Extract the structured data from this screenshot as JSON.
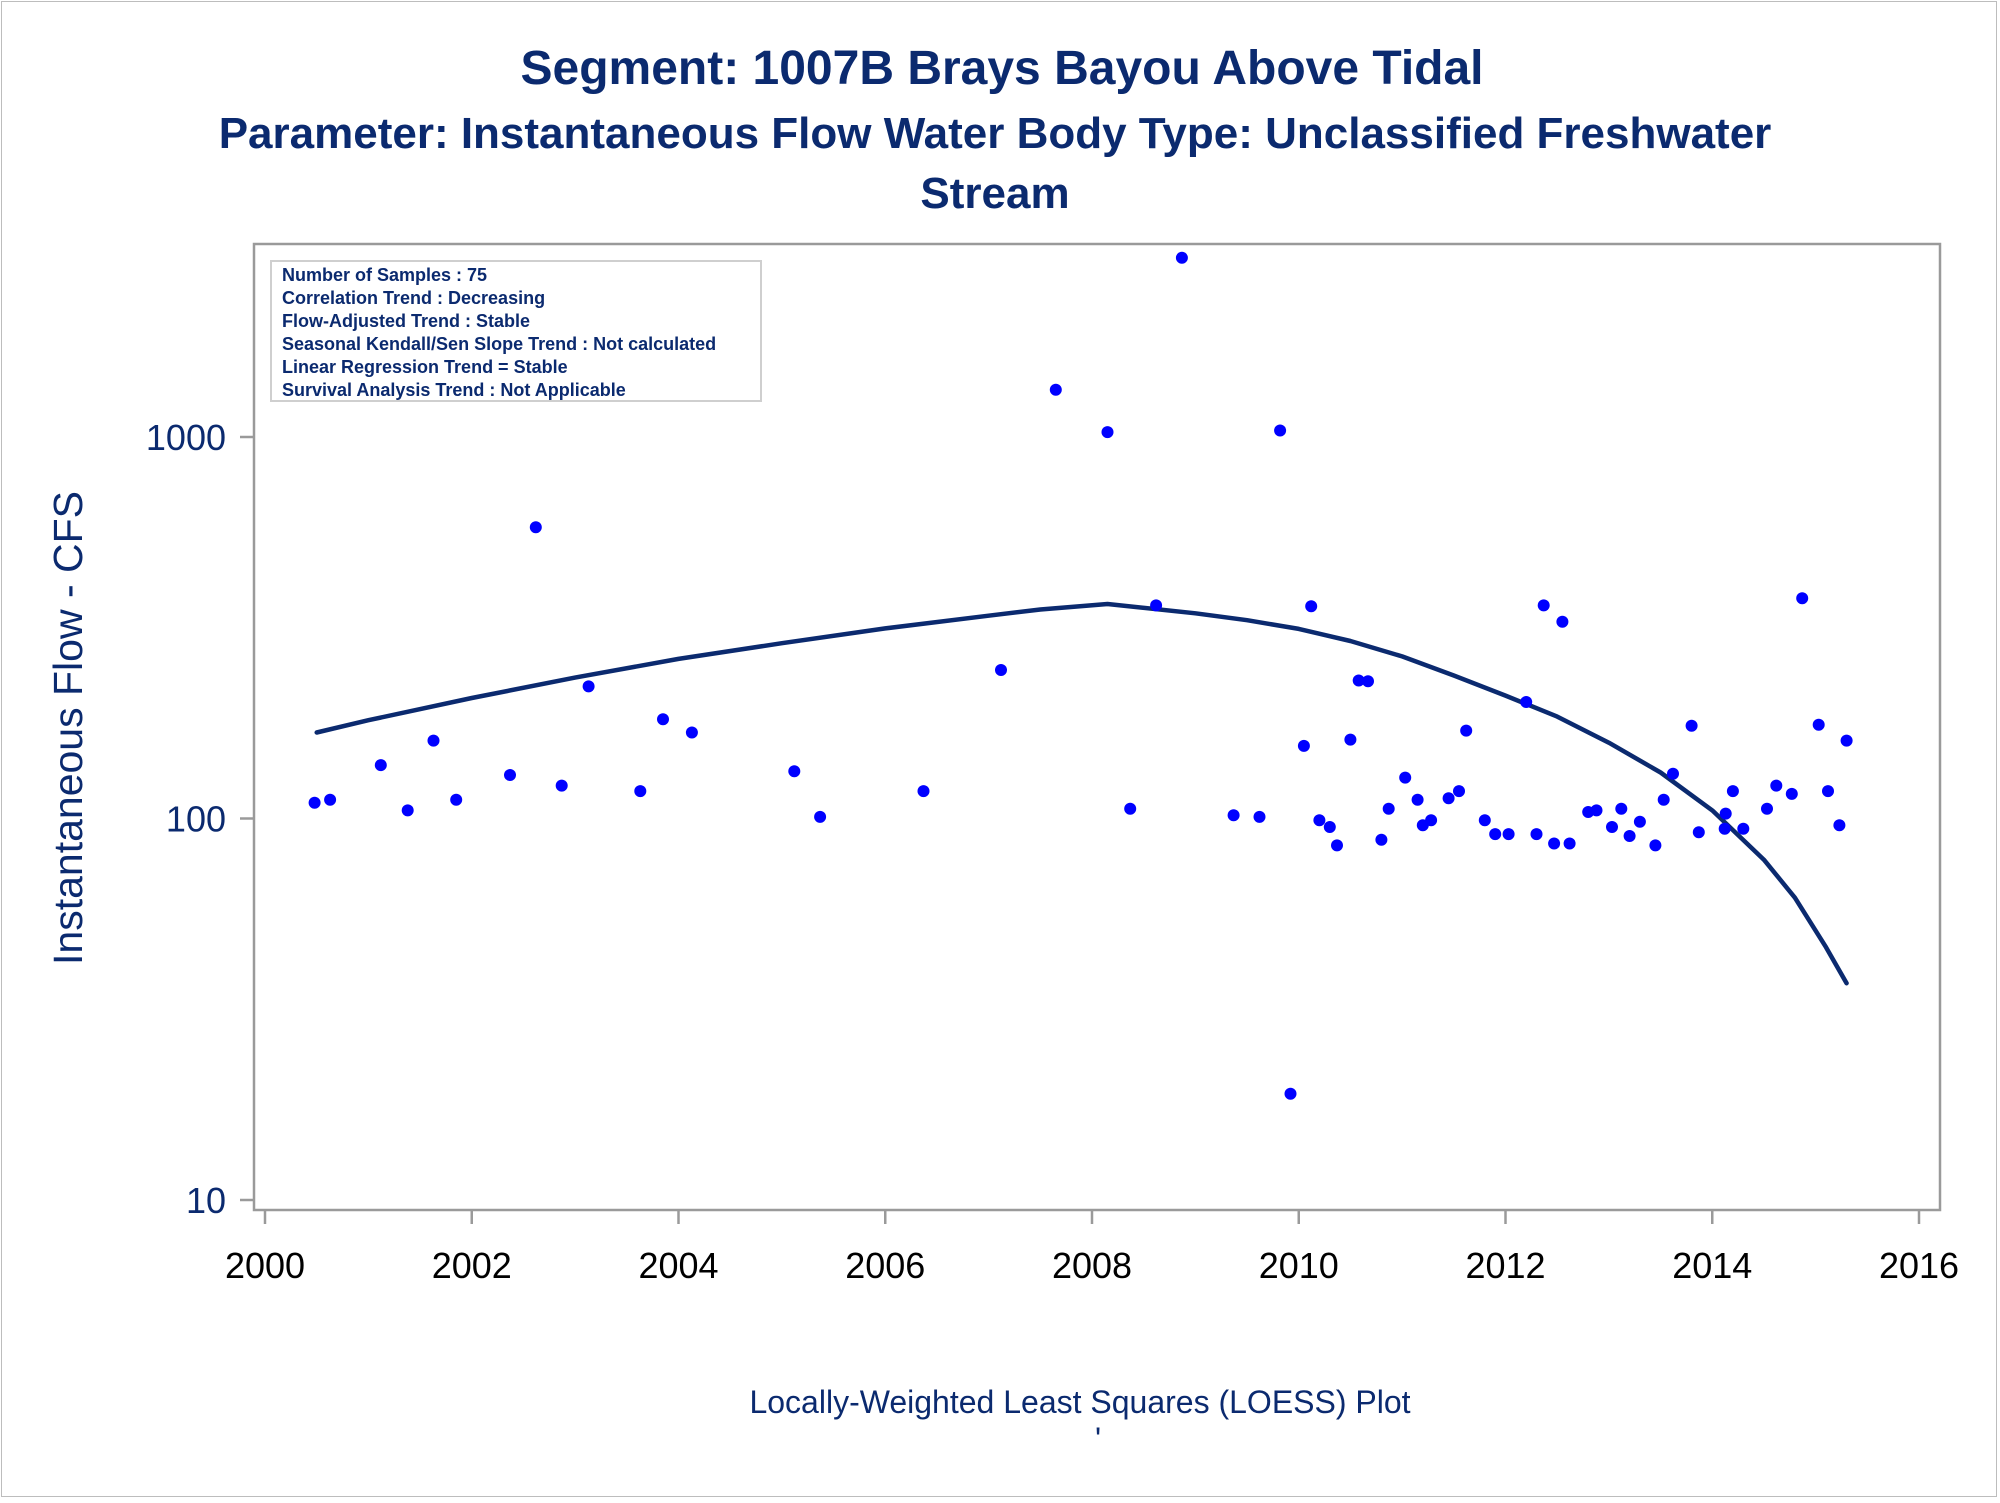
{
  "title_line1": "Segment: 1007B  Brays Bayou Above Tidal",
  "title_line2": "Parameter: Instantaneous Flow   Water Body Type: Unclassified Freshwater",
  "title_line3": "Stream",
  "footnote": "Locally-Weighted Least Squares (LOESS) Plot",
  "footnote_mark": "'",
  "stats_box": [
    "Number of Samples : 75",
    "Correlation Trend : Decreasing",
    "Flow-Adjusted Trend : Stable",
    "Seasonal Kendall/Sen Slope Trend : Not calculated",
    "Linear Regression Trend = Stable",
    "Survival Analysis Trend : Not Applicable"
  ],
  "colors": {
    "title": "#0b2a6f",
    "points": "#0000ff",
    "loess_line": "#0b2a6f",
    "axis": "#9a9a9a"
  },
  "chart_data": {
    "type": "scatter",
    "ylabel": "Instantaneous Flow - CFS",
    "xlabel": "",
    "y_scale": "log",
    "xlim": [
      2000,
      2016
    ],
    "ylim": [
      10,
      3000
    ],
    "x_ticks": [
      "2000",
      "2002",
      "2004",
      "2006",
      "2008",
      "2010",
      "2012",
      "2014",
      "2016"
    ],
    "y_ticks": [
      "10",
      "100",
      "1000"
    ],
    "grid": false,
    "points": [
      {
        "x": 2000.48,
        "y": 110
      },
      {
        "x": 2000.63,
        "y": 112
      },
      {
        "x": 2001.12,
        "y": 138
      },
      {
        "x": 2001.38,
        "y": 105
      },
      {
        "x": 2001.63,
        "y": 160
      },
      {
        "x": 2001.85,
        "y": 112
      },
      {
        "x": 2002.37,
        "y": 130
      },
      {
        "x": 2002.62,
        "y": 580
      },
      {
        "x": 2002.87,
        "y": 122
      },
      {
        "x": 2003.13,
        "y": 222
      },
      {
        "x": 2003.63,
        "y": 118
      },
      {
        "x": 2003.85,
        "y": 182
      },
      {
        "x": 2004.13,
        "y": 168
      },
      {
        "x": 2005.12,
        "y": 133
      },
      {
        "x": 2005.37,
        "y": 101
      },
      {
        "x": 2006.37,
        "y": 118
      },
      {
        "x": 2007.12,
        "y": 245
      },
      {
        "x": 2007.65,
        "y": 1330
      },
      {
        "x": 2008.15,
        "y": 1030
      },
      {
        "x": 2008.37,
        "y": 106
      },
      {
        "x": 2008.62,
        "y": 362
      },
      {
        "x": 2008.87,
        "y": 2950
      },
      {
        "x": 2009.37,
        "y": 102
      },
      {
        "x": 2009.62,
        "y": 101
      },
      {
        "x": 2009.82,
        "y": 1040
      },
      {
        "x": 2009.92,
        "y": 19
      },
      {
        "x": 2010.05,
        "y": 155
      },
      {
        "x": 2010.12,
        "y": 360
      },
      {
        "x": 2010.2,
        "y": 99
      },
      {
        "x": 2010.3,
        "y": 95
      },
      {
        "x": 2010.37,
        "y": 85
      },
      {
        "x": 2010.5,
        "y": 161
      },
      {
        "x": 2010.58,
        "y": 230
      },
      {
        "x": 2010.67,
        "y": 229
      },
      {
        "x": 2010.8,
        "y": 88
      },
      {
        "x": 2010.87,
        "y": 106
      },
      {
        "x": 2011.03,
        "y": 128
      },
      {
        "x": 2011.15,
        "y": 112
      },
      {
        "x": 2011.2,
        "y": 96
      },
      {
        "x": 2011.28,
        "y": 99
      },
      {
        "x": 2011.45,
        "y": 113
      },
      {
        "x": 2011.55,
        "y": 118
      },
      {
        "x": 2011.62,
        "y": 170
      },
      {
        "x": 2011.8,
        "y": 99
      },
      {
        "x": 2011.9,
        "y": 91
      },
      {
        "x": 2012.03,
        "y": 91
      },
      {
        "x": 2012.2,
        "y": 202
      },
      {
        "x": 2012.3,
        "y": 91
      },
      {
        "x": 2012.37,
        "y": 362
      },
      {
        "x": 2012.47,
        "y": 86
      },
      {
        "x": 2012.55,
        "y": 328
      },
      {
        "x": 2012.62,
        "y": 86
      },
      {
        "x": 2012.8,
        "y": 104
      },
      {
        "x": 2012.88,
        "y": 105
      },
      {
        "x": 2013.03,
        "y": 95
      },
      {
        "x": 2013.12,
        "y": 106
      },
      {
        "x": 2013.2,
        "y": 90
      },
      {
        "x": 2013.3,
        "y": 98
      },
      {
        "x": 2013.45,
        "y": 85
      },
      {
        "x": 2013.53,
        "y": 112
      },
      {
        "x": 2013.62,
        "y": 131
      },
      {
        "x": 2013.8,
        "y": 175
      },
      {
        "x": 2013.87,
        "y": 92
      },
      {
        "x": 2014.12,
        "y": 94
      },
      {
        "x": 2014.13,
        "y": 103
      },
      {
        "x": 2014.2,
        "y": 118
      },
      {
        "x": 2014.3,
        "y": 94
      },
      {
        "x": 2014.53,
        "y": 106
      },
      {
        "x": 2014.62,
        "y": 122
      },
      {
        "x": 2014.77,
        "y": 116
      },
      {
        "x": 2014.87,
        "y": 378
      },
      {
        "x": 2015.03,
        "y": 176
      },
      {
        "x": 2015.12,
        "y": 118
      },
      {
        "x": 2015.23,
        "y": 96
      },
      {
        "x": 2015.3,
        "y": 160
      }
    ],
    "loess": [
      {
        "x": 2000.5,
        "y": 168
      },
      {
        "x": 2001,
        "y": 181
      },
      {
        "x": 2002,
        "y": 207
      },
      {
        "x": 2003,
        "y": 234
      },
      {
        "x": 2004,
        "y": 262
      },
      {
        "x": 2005,
        "y": 288
      },
      {
        "x": 2006,
        "y": 315
      },
      {
        "x": 2007,
        "y": 340
      },
      {
        "x": 2007.5,
        "y": 353
      },
      {
        "x": 2008.15,
        "y": 365
      },
      {
        "x": 2009,
        "y": 345
      },
      {
        "x": 2009.5,
        "y": 331
      },
      {
        "x": 2010,
        "y": 314
      },
      {
        "x": 2010.5,
        "y": 292
      },
      {
        "x": 2011,
        "y": 266
      },
      {
        "x": 2011.5,
        "y": 237
      },
      {
        "x": 2012,
        "y": 210
      },
      {
        "x": 2012.5,
        "y": 185
      },
      {
        "x": 2013,
        "y": 158
      },
      {
        "x": 2013.5,
        "y": 132
      },
      {
        "x": 2014,
        "y": 105
      },
      {
        "x": 2014.5,
        "y": 78
      },
      {
        "x": 2014.8,
        "y": 62
      },
      {
        "x": 2015.1,
        "y": 46
      },
      {
        "x": 2015.3,
        "y": 37
      }
    ]
  }
}
